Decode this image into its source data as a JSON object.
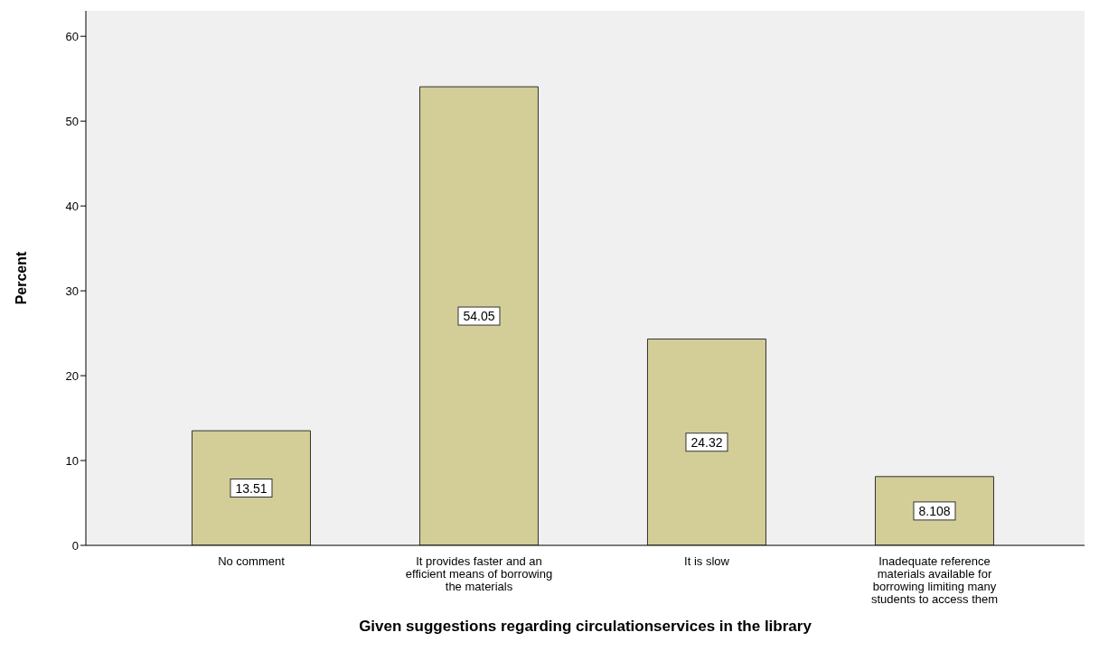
{
  "chart_data": {
    "type": "bar",
    "xlabel": "Given suggestions regarding circulationservices in the library",
    "ylabel": "Percent",
    "categories": [
      "No comment",
      "It provides faster and an efficient means of borrowing the materials",
      "It is slow",
      "Inadequate reference materials available for borrowing limiting many students to access them"
    ],
    "values": [
      13.51,
      54.05,
      24.32,
      8.108
    ],
    "color": "#d3ce97",
    "ylim": [
      0,
      63
    ],
    "yticks": [
      0,
      10,
      20,
      30,
      40,
      50,
      60
    ],
    "data_labels": true
  }
}
